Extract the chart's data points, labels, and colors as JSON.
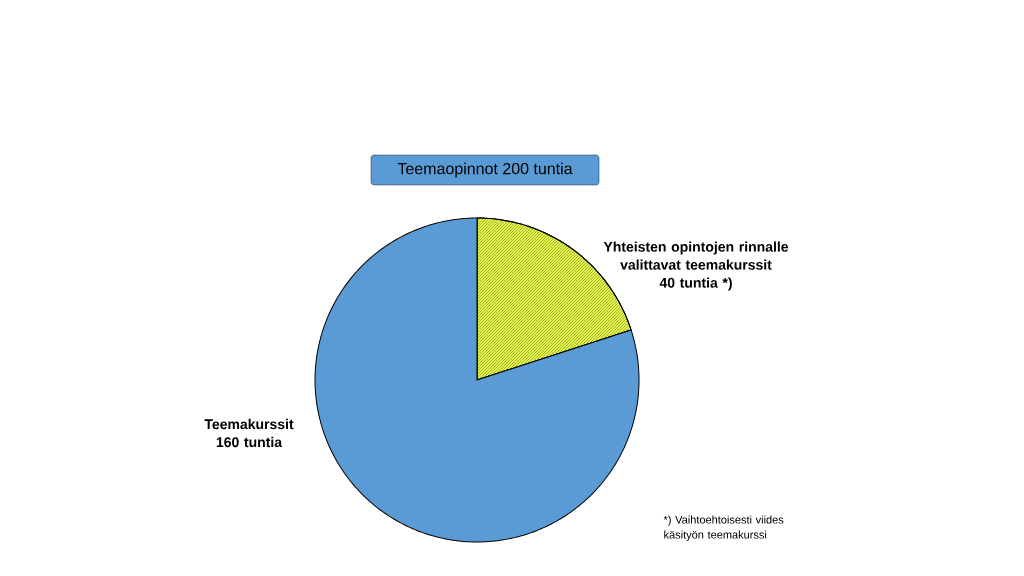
{
  "chart_data": {
    "type": "pie",
    "title": "Teemaopinnot 200 tuntia",
    "categories": [
      "Yhteisten opintojen rinnalle valittavat teemakurssit",
      "Teemakurssit"
    ],
    "values": [
      40,
      160
    ],
    "value_labels": [
      "40 tuntia  *)",
      "160 tuntia"
    ],
    "colors": [
      "#e2f542",
      "#5b9bd5"
    ],
    "annotations": [
      "*) Vaihtoehtoisesti viides käsityön teemakurssi"
    ]
  }
}
